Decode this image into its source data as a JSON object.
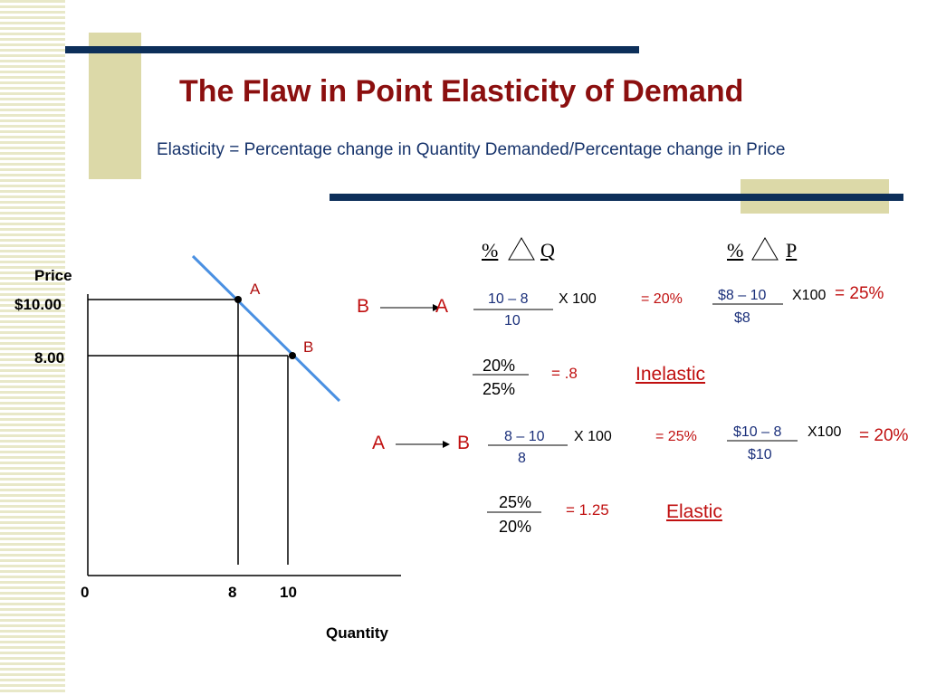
{
  "title": "The Flaw in Point Elasticity of Demand",
  "subtitle": "Elasticity = Percentage change in Quantity Demanded/Percentage change in Price",
  "graph": {
    "y_axis_label": "Price",
    "x_axis_label": "Quantity",
    "y_ticks": [
      "$10.00",
      "8.00"
    ],
    "x_ticks": [
      "0",
      "8",
      "10"
    ],
    "point_a": "A",
    "point_b": "B",
    "points": [
      {
        "name": "A",
        "quantity": 8,
        "price": 10
      },
      {
        "name": "B",
        "quantity": 10,
        "price": 8
      }
    ]
  },
  "headers": {
    "pct_q": "% Q",
    "pct_p": "% P",
    "pct_symbol": "%",
    "q": "Q",
    "p": "P"
  },
  "row1": {
    "from": "B",
    "to": "A",
    "q_num": "10 – 8",
    "q_mult": "X 100",
    "q_den": "10",
    "q_result": "= 20%",
    "p_num": "$8 – 10",
    "p_mult": "X100",
    "p_den": "$8",
    "p_result": "= 25%",
    "ratio_num": "20%",
    "ratio_den": "25%",
    "ratio_result": "= .8",
    "verdict": "Inelastic"
  },
  "row2": {
    "from": "A",
    "to": "B",
    "q_num": "8 – 10",
    "q_mult": "X 100",
    "q_den": "8",
    "q_result": "= 25%",
    "p_num": "$10 – 8",
    "p_mult": "X100",
    "p_den": "$10",
    "p_result": "= 20%",
    "ratio_num": "25%",
    "ratio_den": "20%",
    "ratio_result": "= 1.25",
    "verdict": "Elastic"
  },
  "colors": {
    "title": "#8b0f0f",
    "accent_line": "#0d2f5a",
    "tan": "#dcd9a8",
    "demand_line": "#4a90e2",
    "result_red": "#c01010",
    "formula_blue": "#1a2f7a"
  }
}
